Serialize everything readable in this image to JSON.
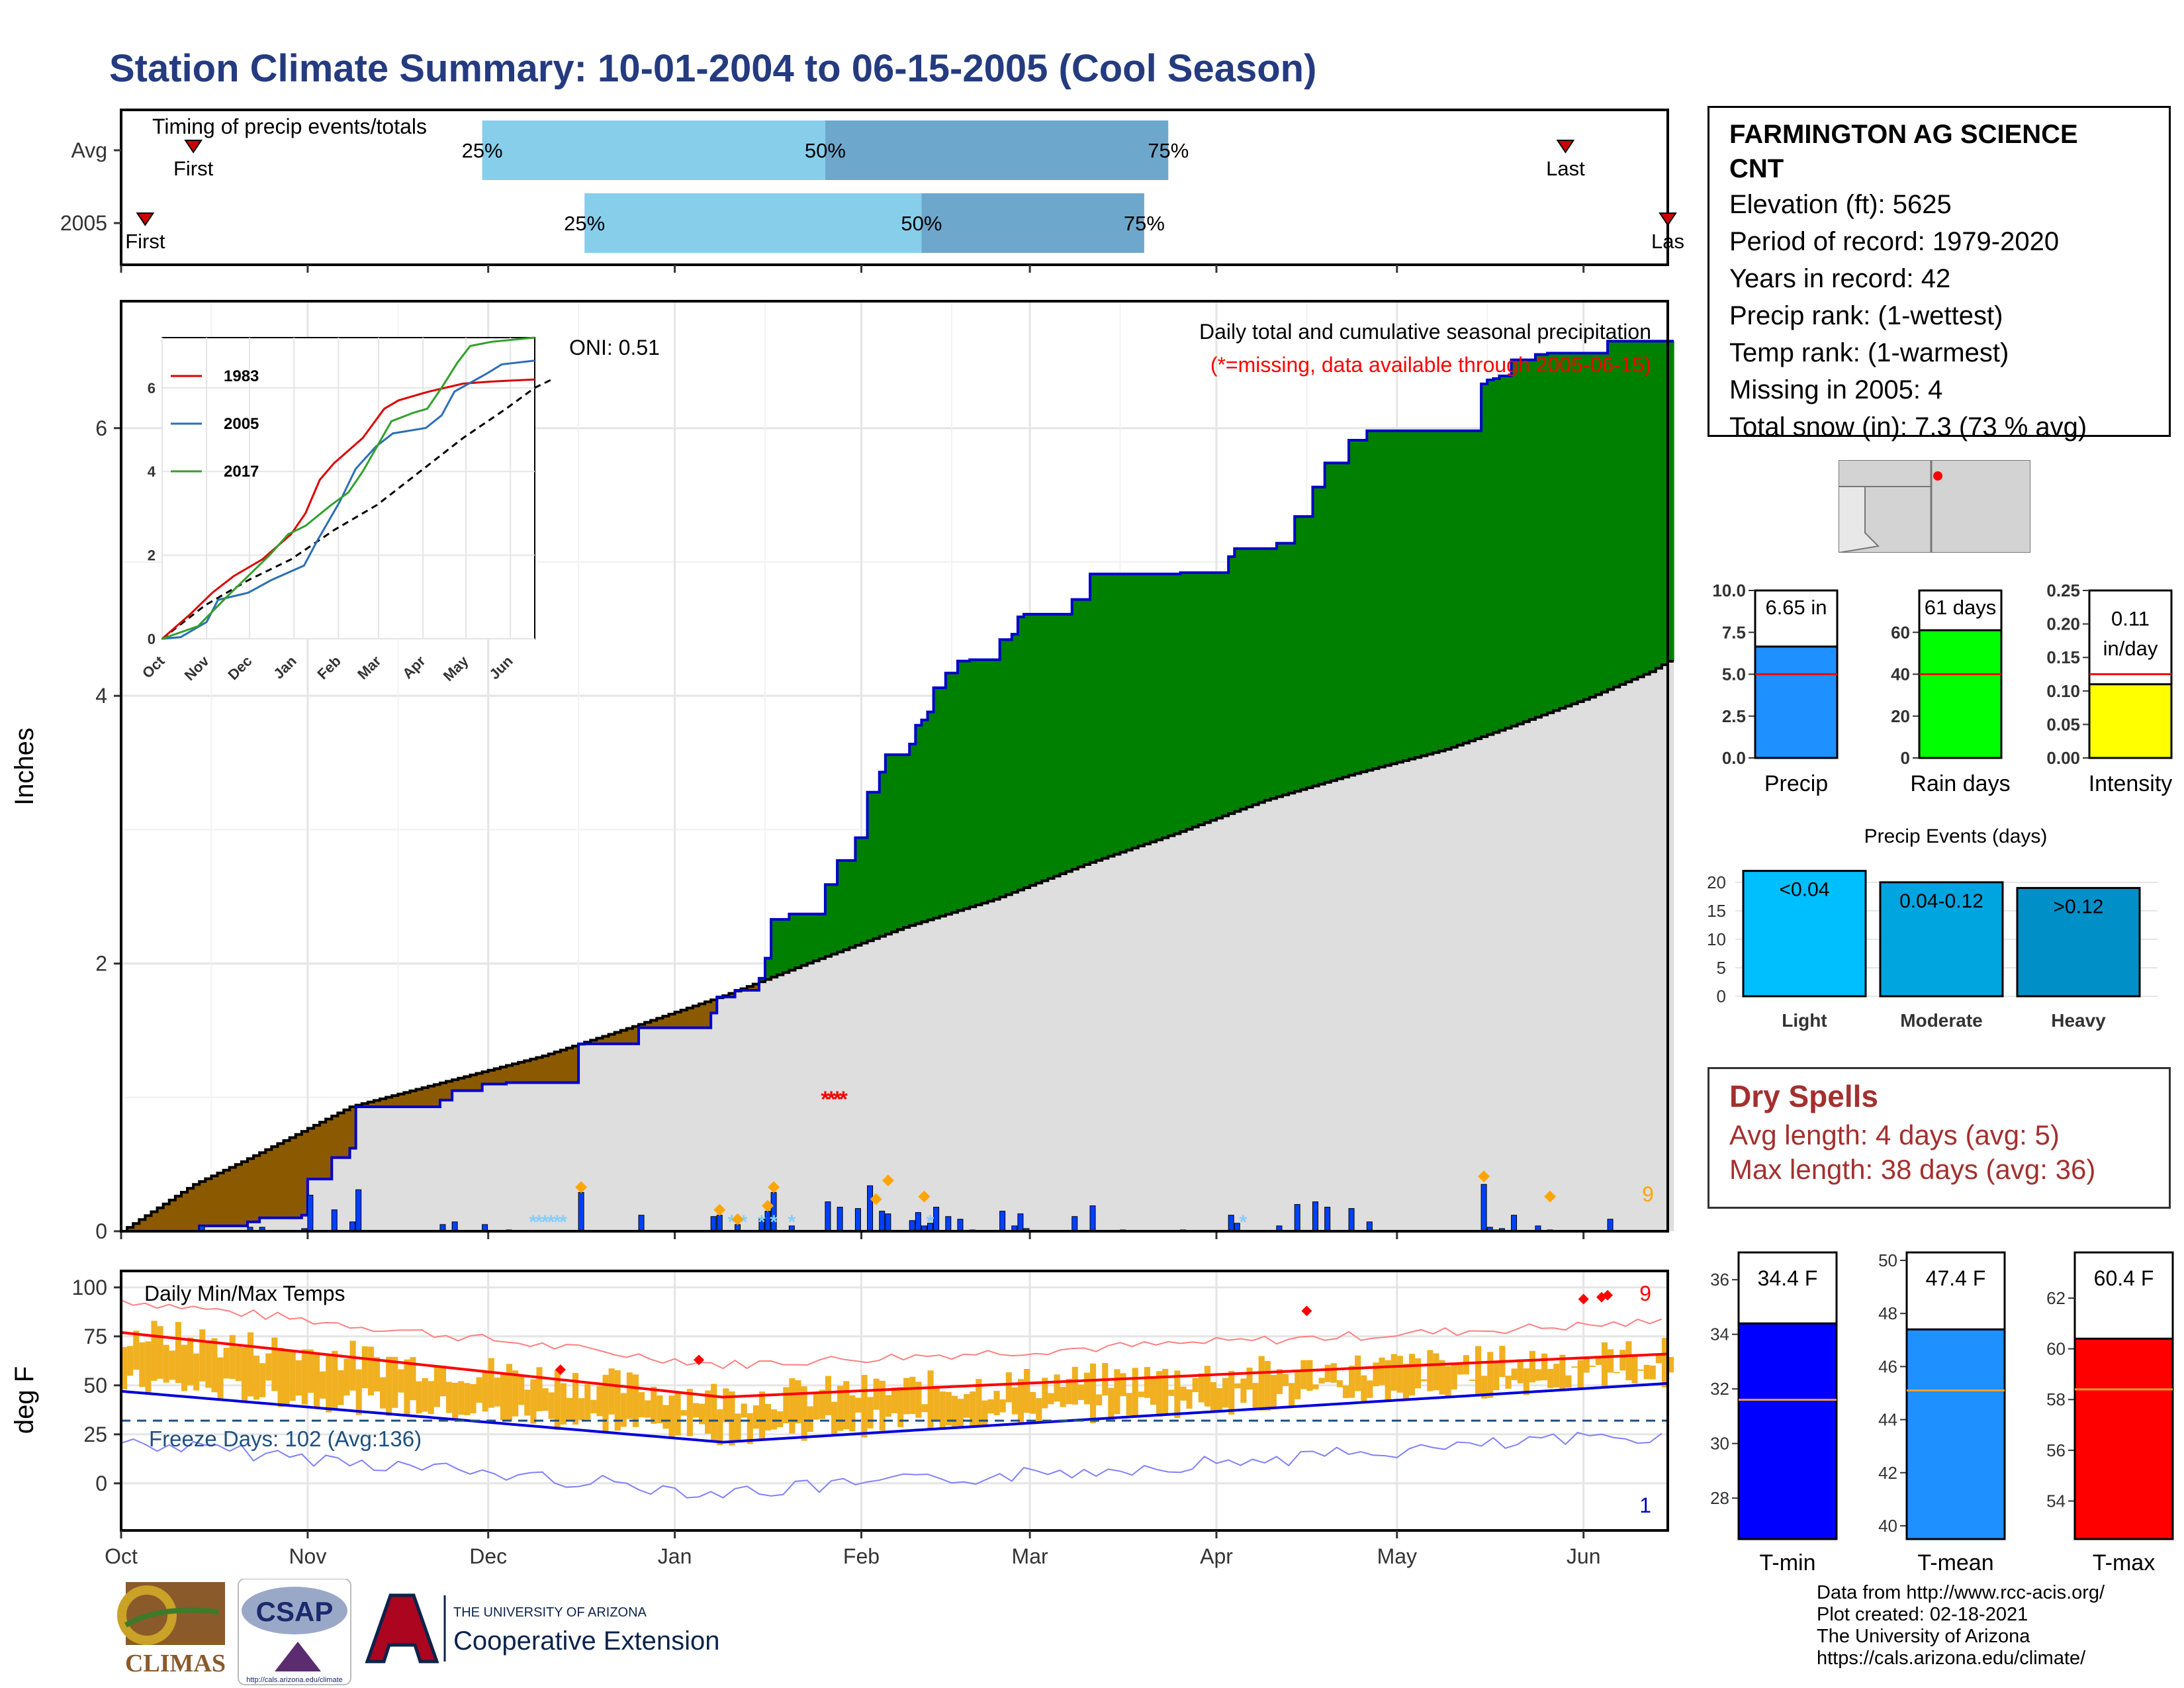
{
  "title": "Station Climate Summary: 10-01-2004 to 06-15-2005 (Cool Season)",
  "months": [
    "Oct",
    "Nov",
    "Dec",
    "Jan",
    "Feb",
    "Mar",
    "Apr",
    "May",
    "Jun"
  ],
  "timing": {
    "label": "Timing of precip events/totals",
    "rows": [
      {
        "name": "Avg",
        "first_doy": 12,
        "last_doy": 240,
        "p25_doy": 60,
        "p50_doy": 117,
        "p75_doy": 174
      },
      {
        "name": "2005",
        "first_doy": 4,
        "last_doy": 257,
        "p25_doy": 77,
        "p50_doy": 133,
        "p75_doy": 170
      }
    ],
    "first_label": "First",
    "last_label": "Last",
    "last_label_2005": "Las",
    "p25_label": "25%",
    "p50_label": "50%",
    "p75_label": "75%",
    "colors": {
      "light": "#87ceeb",
      "dark": "#6da7cc",
      "marker": "#cc0000"
    }
  },
  "precip": {
    "ylabel": "Inches",
    "yticks": [
      0,
      2,
      4,
      6
    ],
    "ylim": [
      0,
      6.8
    ],
    "subtitle": "Daily total and cumulative seasonal precipitation",
    "missing_note": "(*=missing, data available through 2005-06-15)",
    "oni": "ONI: 0.51",
    "snow_days_label": "9",
    "colors": {
      "observed_line": "#0000cc",
      "above": "#008000",
      "below": "#8b5a00",
      "normal_fill": "#dedede",
      "normal_line": "#000000",
      "daily": "#0040ff",
      "snow": "#87cefa",
      "event": "#ffa500",
      "missing": "#ff0000"
    },
    "cumulative_observed": [
      [
        0,
        0
      ],
      [
        13,
        0.04
      ],
      [
        21,
        0.07
      ],
      [
        23,
        0.1
      ],
      [
        30,
        0.12
      ],
      [
        31,
        0.39
      ],
      [
        35,
        0.55
      ],
      [
        38,
        0.62
      ],
      [
        39,
        0.93
      ],
      [
        53,
        0.98
      ],
      [
        55,
        1.05
      ],
      [
        60,
        1.1
      ],
      [
        64,
        1.11
      ],
      [
        76,
        1.4
      ],
      [
        86,
        1.52
      ],
      [
        98,
        1.63
      ],
      [
        99,
        1.75
      ],
      [
        102,
        1.8
      ],
      [
        106,
        1.89
      ],
      [
        107,
        2.04
      ],
      [
        108,
        2.33
      ],
      [
        111,
        2.37
      ],
      [
        117,
        2.59
      ],
      [
        119,
        2.77
      ],
      [
        122,
        2.94
      ],
      [
        124,
        3.28
      ],
      [
        126,
        3.43
      ],
      [
        127,
        3.43
      ],
      [
        127,
        3.56
      ],
      [
        131,
        3.64
      ],
      [
        132,
        3.78
      ],
      [
        133,
        3.82
      ],
      [
        134,
        3.88
      ],
      [
        135,
        4.06
      ],
      [
        137,
        4.17
      ],
      [
        139,
        4.26
      ],
      [
        141,
        4.27
      ],
      [
        146,
        4.42
      ],
      [
        148,
        4.46
      ],
      [
        149,
        4.59
      ],
      [
        150,
        4.61
      ],
      [
        158,
        4.72
      ],
      [
        161,
        4.91
      ],
      [
        166,
        4.91
      ],
      [
        176,
        4.92
      ],
      [
        184,
        5.04
      ],
      [
        185,
        5.1
      ],
      [
        192,
        5.14
      ],
      [
        195,
        5.34
      ],
      [
        198,
        5.56
      ],
      [
        200,
        5.74
      ],
      [
        204,
        5.91
      ],
      [
        207,
        5.98
      ],
      [
        226,
        6.33
      ],
      [
        227,
        6.36
      ],
      [
        228,
        6.37
      ],
      [
        229,
        6.39
      ],
      [
        231,
        6.51
      ],
      [
        235,
        6.55
      ],
      [
        237,
        6.56
      ],
      [
        247,
        6.56
      ],
      [
        247,
        6.65
      ]
    ],
    "cumulative_normal": [
      [
        0,
        0
      ],
      [
        12,
        0.35
      ],
      [
        20,
        0.52
      ],
      [
        28,
        0.7
      ],
      [
        38,
        0.93
      ],
      [
        54,
        1.12
      ],
      [
        70,
        1.31
      ],
      [
        85,
        1.53
      ],
      [
        100,
        1.76
      ],
      [
        115,
        2.02
      ],
      [
        130,
        2.27
      ],
      [
        145,
        2.48
      ],
      [
        160,
        2.74
      ],
      [
        175,
        2.97
      ],
      [
        190,
        3.22
      ],
      [
        205,
        3.42
      ],
      [
        220,
        3.6
      ],
      [
        232,
        3.79
      ],
      [
        244,
        3.99
      ],
      [
        254,
        4.18
      ],
      [
        264,
        4.44
      ],
      [
        272,
        4.58
      ]
    ],
    "daily_precip": [
      [
        13,
        0.04
      ],
      [
        21,
        0.03
      ],
      [
        23,
        0.03
      ],
      [
        30,
        0.02
      ],
      [
        31,
        0.27
      ],
      [
        35,
        0.16
      ],
      [
        38,
        0.07
      ],
      [
        39,
        0.31
      ],
      [
        53,
        0.05
      ],
      [
        55,
        0.07
      ],
      [
        60,
        0.05
      ],
      [
        64,
        0.01
      ],
      [
        76,
        0.29
      ],
      [
        86,
        0.12
      ],
      [
        98,
        0.11
      ],
      [
        99,
        0.12
      ],
      [
        102,
        0.05
      ],
      [
        106,
        0.09
      ],
      [
        107,
        0.15
      ],
      [
        108,
        0.29
      ],
      [
        111,
        0.04
      ],
      [
        117,
        0.22
      ],
      [
        119,
        0.18
      ],
      [
        122,
        0.17
      ],
      [
        124,
        0.34
      ],
      [
        126,
        0.15
      ],
      [
        127,
        0.13
      ],
      [
        131,
        0.08
      ],
      [
        132,
        0.14
      ],
      [
        133,
        0.04
      ],
      [
        134,
        0.06
      ],
      [
        135,
        0.18
      ],
      [
        137,
        0.11
      ],
      [
        139,
        0.09
      ],
      [
        141,
        0.01
      ],
      [
        146,
        0.15
      ],
      [
        148,
        0.04
      ],
      [
        149,
        0.13
      ],
      [
        150,
        0.02
      ],
      [
        158,
        0.11
      ],
      [
        161,
        0.19
      ],
      [
        166,
        0.01
      ],
      [
        176,
        0.01
      ],
      [
        184,
        0.12
      ],
      [
        185,
        0.06
      ],
      [
        192,
        0.04
      ],
      [
        195,
        0.2
      ],
      [
        198,
        0.22
      ],
      [
        200,
        0.18
      ],
      [
        204,
        0.17
      ],
      [
        207,
        0.07
      ],
      [
        226,
        0.35
      ],
      [
        227,
        0.03
      ],
      [
        228,
        0.01
      ],
      [
        229,
        0.02
      ],
      [
        231,
        0.12
      ],
      [
        235,
        0.04
      ],
      [
        237,
        0.01
      ],
      [
        247,
        0.09
      ]
    ],
    "event_markers": [
      [
        76,
        0.29
      ],
      [
        99,
        0.12
      ],
      [
        102,
        0.05
      ],
      [
        107,
        0.15
      ],
      [
        108,
        0.29
      ],
      [
        125,
        0.2
      ],
      [
        127,
        0.34
      ],
      [
        133,
        0.22
      ],
      [
        226,
        0.37
      ],
      [
        237,
        0.22
      ],
      [
        269,
        0.03
      ]
    ],
    "snow_markers": [
      [
        68,
        0.07
      ],
      [
        69,
        0.07
      ],
      [
        70,
        0.07
      ],
      [
        71,
        0.07
      ],
      [
        72,
        0.07
      ],
      [
        73,
        0.07
      ],
      [
        101,
        0.07
      ],
      [
        103,
        0.07
      ],
      [
        106,
        0.07
      ],
      [
        108,
        0.07
      ],
      [
        111,
        0.07
      ],
      [
        134,
        0.07
      ],
      [
        186,
        0.07
      ]
    ],
    "missing_markers": [
      [
        117,
        1.0
      ],
      [
        118,
        1.0
      ],
      [
        119,
        1.0
      ],
      [
        120,
        1.0
      ]
    ]
  },
  "inset": {
    "months": [
      "Oct",
      "Nov",
      "Dec",
      "Jan",
      "Feb",
      "Mar",
      "Apr",
      "May",
      "Jun"
    ],
    "yticks": [
      0,
      2,
      4,
      6
    ],
    "legend": [
      {
        "name": "1983",
        "color": "#dd0000"
      },
      {
        "name": "2005",
        "color": "#2c6fb5"
      },
      {
        "name": "2017",
        "color": "#33a02c"
      }
    ],
    "series": {
      "1983": [
        [
          0,
          0
        ],
        [
          20,
          0.6
        ],
        [
          35,
          1.1
        ],
        [
          50,
          1.5
        ],
        [
          70,
          1.9
        ],
        [
          90,
          2.5
        ],
        [
          100,
          3.0
        ],
        [
          110,
          3.8
        ],
        [
          120,
          4.2
        ],
        [
          140,
          4.8
        ],
        [
          155,
          5.5
        ],
        [
          165,
          5.7
        ],
        [
          185,
          5.9
        ],
        [
          210,
          6.1
        ],
        [
          230,
          6.15
        ],
        [
          260,
          6.2
        ]
      ],
      "2005": [
        [
          0,
          0
        ],
        [
          13,
          0.04
        ],
        [
          31,
          0.4
        ],
        [
          39,
          0.93
        ],
        [
          60,
          1.1
        ],
        [
          76,
          1.4
        ],
        [
          99,
          1.75
        ],
        [
          108,
          2.33
        ],
        [
          124,
          3.28
        ],
        [
          135,
          4.06
        ],
        [
          149,
          4.59
        ],
        [
          161,
          4.91
        ],
        [
          184,
          5.04
        ],
        [
          195,
          5.34
        ],
        [
          204,
          5.91
        ],
        [
          226,
          6.33
        ],
        [
          237,
          6.56
        ],
        [
          260,
          6.65
        ]
      ],
      "2017": [
        [
          0,
          0
        ],
        [
          25,
          0.3
        ],
        [
          45,
          1.0
        ],
        [
          60,
          1.5
        ],
        [
          75,
          2.0
        ],
        [
          88,
          2.5
        ],
        [
          100,
          2.7
        ],
        [
          118,
          3.2
        ],
        [
          130,
          3.5
        ],
        [
          140,
          4.0
        ],
        [
          160,
          5.2
        ],
        [
          175,
          5.4
        ],
        [
          185,
          5.5
        ],
        [
          195,
          6.0
        ],
        [
          206,
          6.6
        ],
        [
          215,
          7.0
        ],
        [
          230,
          7.1
        ],
        [
          260,
          7.2
        ]
      ],
      "avg": [
        [
          0,
          0
        ],
        [
          30,
          0.8
        ],
        [
          60,
          1.4
        ],
        [
          90,
          1.9
        ],
        [
          120,
          2.6
        ],
        [
          150,
          3.2
        ],
        [
          180,
          4.0
        ],
        [
          210,
          4.8
        ],
        [
          240,
          5.5
        ],
        [
          260,
          6.0
        ],
        [
          272,
          6.2
        ]
      ]
    }
  },
  "station": {
    "name_line1": "FARMINGTON AG SCIENCE",
    "name_line2": "CNT",
    "elevation": "Elevation (ft): 5625",
    "period": "Period of record: 1979-2020",
    "years": "Years in record: 42",
    "precip_rank": "Precip rank:  (1-wettest)",
    "temp_rank": "Temp rank:  (1-warmest)",
    "missing": "Missing in 2005: 4",
    "snow": "Total snow (in): 7.3 (73 % avg)"
  },
  "summary_bars": [
    {
      "label": "Precip",
      "value": 6.65,
      "value_label": "6.65 in",
      "avg": 5.0,
      "yticks": [
        "0.0",
        "2.5",
        "5.0",
        "7.5",
        "10.0"
      ],
      "ymax": 10,
      "color": "#1e90ff"
    },
    {
      "label": "Rain days",
      "value": 61,
      "value_label": "61 days",
      "avg": 40,
      "yticks": [
        "0",
        "20",
        "40",
        "60"
      ],
      "ymax": 80,
      "color": "#00ff00"
    },
    {
      "label": "Intensity",
      "value": 0.11,
      "value_label": "0.11",
      "value_label2": "in/day",
      "avg": 0.125,
      "yticks": [
        "0.00",
        "0.05",
        "0.10",
        "0.15",
        "0.20",
        "0.25"
      ],
      "ymax": 0.25,
      "color": "#ffff00"
    }
  ],
  "events": {
    "title": "Precip Events (days)",
    "categories": [
      "Light",
      "Moderate",
      "Heavy"
    ],
    "bin_labels": [
      "<0.04",
      "0.04-0.12",
      ">0.12"
    ],
    "values": [
      22,
      20,
      19
    ],
    "yticks": [
      0,
      5,
      10,
      15,
      20
    ],
    "colors": [
      "#00bfff",
      "#00a5e0",
      "#0090c8"
    ]
  },
  "dry_spells": {
    "title": "Dry Spells",
    "avg": "Avg length: 4 days (avg: 5)",
    "max": "Max length: 38 days (avg: 36)"
  },
  "temps": {
    "ylabel": "deg F",
    "yticks": [
      0,
      25,
      50,
      75,
      100
    ],
    "title": "Daily Min/Max Temps",
    "freeze": "Freeze Days: 102 (Avg:136)",
    "count_max": "9",
    "count_min": "1",
    "colors": {
      "bars": "#f0b020",
      "avg_max": "#ff0000",
      "avg_min": "#0000dd",
      "rec_max": "#ff8080",
      "rec_min": "#8080ff",
      "freeze": "#1f5080"
    }
  },
  "temp_bars": [
    {
      "label": "T-min",
      "value": 34.4,
      "value_label": "34.4 F",
      "avg": 31.6,
      "yticks": [
        "28",
        "30",
        "32",
        "34",
        "36"
      ],
      "ymin": 26.5,
      "ymax": 37,
      "color": "#0000ff"
    },
    {
      "label": "T-mean",
      "value": 47.4,
      "value_label": "47.4 F",
      "avg": 45.1,
      "yticks": [
        "40",
        "42",
        "44",
        "46",
        "48",
        "50"
      ],
      "ymin": 39.5,
      "ymax": 50.3,
      "color": "#1e90ff"
    },
    {
      "label": "T-max",
      "value": 60.4,
      "value_label": "60.4 F",
      "avg": 58.4,
      "yticks": [
        "54",
        "56",
        "58",
        "60",
        "62"
      ],
      "ymin": 52.5,
      "ymax": 63.8,
      "color": "#ff0000"
    }
  ],
  "footer": {
    "climas": "CLIMAS",
    "csap": "CSAP",
    "csap_url": "http://cals.arizona.edu/climate",
    "ua_small": "THE UNIVERSITY OF ARIZONA",
    "ua_big": "Cooperative Extension",
    "credit1": "Data from http://www.rcc-acis.org/",
    "credit2": "Plot created: 02-18-2021",
    "credit3": "The University of Arizona",
    "credit4": "https://cals.arizona.edu/climate/"
  }
}
